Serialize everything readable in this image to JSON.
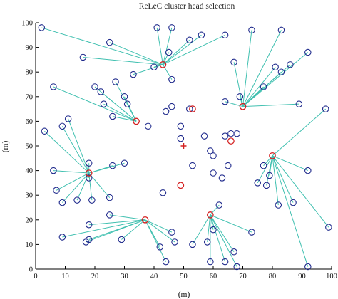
{
  "chart_data": {
    "type": "scatter",
    "title": "ReLeC cluster head selection",
    "xlabel": "(m)",
    "ylabel": "(m)",
    "xlim": [
      0,
      100
    ],
    "ylim": [
      0,
      100
    ],
    "xticks": [
      0,
      10,
      20,
      30,
      40,
      50,
      60,
      70,
      80,
      90,
      100
    ],
    "yticks": [
      0,
      10,
      20,
      30,
      40,
      50,
      60,
      70,
      80,
      90,
      100
    ],
    "grid": false,
    "colors": {
      "node": "#1f2a8c",
      "cluster_head": "#d42020",
      "link": "#40c0b0",
      "sink": "#d42020",
      "axis": "#000000"
    },
    "sink": {
      "x": 50,
      "y": 50
    },
    "clusters": [
      {
        "head": [
          43,
          83
        ],
        "members": [
          [
            2,
            98
          ],
          [
            25,
            92
          ],
          [
            16,
            86
          ],
          [
            41,
            98
          ],
          [
            46,
            98
          ],
          [
            45,
            88
          ],
          [
            52,
            93
          ],
          [
            56,
            95
          ],
          [
            64,
            95
          ],
          [
            46,
            77
          ],
          [
            33,
            79
          ],
          [
            40,
            82
          ]
        ]
      },
      {
        "head": [
          70,
          66
        ],
        "members": [
          [
            73,
            97
          ],
          [
            83,
            97
          ],
          [
            67,
            84
          ],
          [
            92,
            88
          ],
          [
            81,
            82
          ],
          [
            83,
            80
          ],
          [
            86,
            83
          ],
          [
            77,
            74
          ],
          [
            69,
            70
          ],
          [
            64,
            68
          ],
          [
            89,
            67
          ]
        ]
      },
      {
        "head": [
          34,
          60
        ],
        "members": [
          [
            6,
            74
          ],
          [
            20,
            74
          ],
          [
            22,
            72
          ],
          [
            23,
            67
          ],
          [
            27,
            76
          ],
          [
            30,
            70
          ],
          [
            31,
            67
          ],
          [
            26,
            62
          ]
        ]
      },
      {
        "head": [
          18,
          39
        ],
        "members": [
          [
            3,
            56
          ],
          [
            9,
            58
          ],
          [
            11,
            61
          ],
          [
            6,
            40
          ],
          [
            7,
            32
          ],
          [
            9,
            27
          ],
          [
            14,
            28
          ],
          [
            18,
            43
          ],
          [
            19,
            28
          ],
          [
            25,
            29
          ],
          [
            26,
            42
          ],
          [
            30,
            43
          ],
          [
            18,
            37
          ]
        ]
      },
      {
        "head": [
          37,
          20
        ],
        "members": [
          [
            9,
            13
          ],
          [
            18,
            18
          ],
          [
            18,
            12
          ],
          [
            17,
            11
          ],
          [
            25,
            22
          ],
          [
            29,
            12
          ],
          [
            46,
            15
          ],
          [
            47,
            11
          ],
          [
            42,
            9
          ],
          [
            44,
            3
          ]
        ]
      },
      {
        "head": [
          59,
          22
        ],
        "members": [
          [
            53,
            10
          ],
          [
            60,
            16
          ],
          [
            62,
            26
          ],
          [
            58,
            11
          ],
          [
            59,
            3
          ],
          [
            64,
            3
          ],
          [
            67,
            7
          ],
          [
            68,
            1
          ],
          [
            73,
            15
          ]
        ]
      },
      {
        "head": [
          80,
          46
        ],
        "members": [
          [
            75,
            35
          ],
          [
            77,
            42
          ],
          [
            78,
            34
          ],
          [
            79,
            38
          ],
          [
            82,
            26
          ],
          [
            87,
            27
          ],
          [
            92,
            40
          ],
          [
            98,
            65
          ],
          [
            99,
            17
          ],
          [
            92,
            1
          ]
        ]
      }
    ],
    "cluster_heads": [
      [
        43,
        83
      ],
      [
        70,
        66
      ],
      [
        34,
        60
      ],
      [
        18,
        39
      ],
      [
        37,
        20
      ],
      [
        59,
        22
      ],
      [
        80,
        46
      ],
      [
        53,
        65
      ],
      [
        49,
        34
      ],
      [
        66,
        52
      ]
    ],
    "free_nodes": [
      [
        49,
        53
      ],
      [
        57,
        54
      ],
      [
        59,
        48
      ],
      [
        60,
        46
      ],
      [
        63,
        37
      ],
      [
        64,
        54
      ],
      [
        66,
        55
      ],
      [
        68,
        55
      ],
      [
        65,
        42
      ],
      [
        60,
        39
      ],
      [
        53,
        42
      ],
      [
        43,
        31
      ],
      [
        44,
        64
      ],
      [
        49,
        58
      ],
      [
        46,
        66
      ],
      [
        38,
        58
      ],
      [
        52,
        65
      ]
    ]
  }
}
